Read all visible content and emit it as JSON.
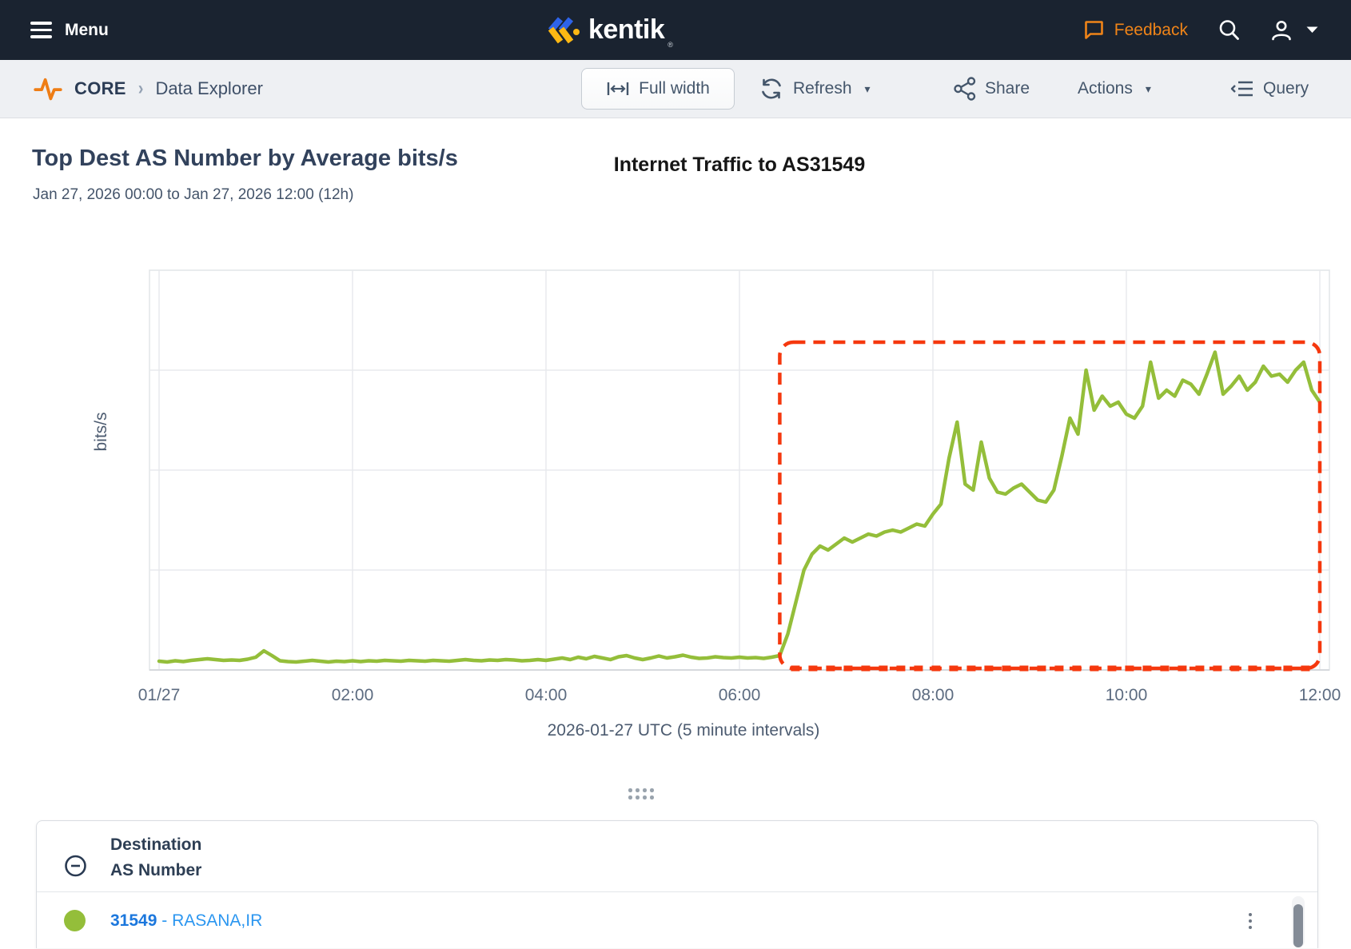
{
  "nav": {
    "menu_label": "Menu",
    "brand": "kentik",
    "registered_mark": "®",
    "feedback_label": "Feedback"
  },
  "toolbar": {
    "breadcrumb_section": "CORE",
    "breadcrumb_separator": "›",
    "breadcrumb_page": "Data Explorer",
    "full_width_label": "Full width",
    "refresh_label": "Refresh",
    "share_label": "Share",
    "actions_label": "Actions",
    "query_label": "Query",
    "caret_glyph": "▾"
  },
  "panel": {
    "title": "Top Dest AS Number by Average bits/s",
    "date_range": "Jan 27, 2026 00:00 to Jan 27, 2026 12:00 (12h)",
    "annotation_title": "Internet Traffic to AS31549"
  },
  "chart_data": {
    "type": "line",
    "title": "Internet Traffic to AS31549",
    "xlabel": "2026-01-27 UTC (5 minute intervals)",
    "ylabel": "bits/s",
    "x_tick_labels": [
      "01/27",
      "02:00",
      "04:00",
      "06:00",
      "08:00",
      "10:00",
      "12:00"
    ],
    "x_start": "2026-01-27 00:00 UTC",
    "x_end": "2026-01-27 12:00 UTC",
    "interval_minutes": 5,
    "y_tick_labels": [],
    "value_units": "bits/s (y axis unlabeled in UI; values are percent of plot height)",
    "ylim": [
      0,
      100
    ],
    "grid": true,
    "legend_position": "none",
    "series": [
      {
        "name": "31549 - RASANA,IR",
        "color": "#94be3a",
        "values": [
          2.2,
          2.0,
          2.3,
          2.1,
          2.4,
          2.6,
          2.8,
          2.6,
          2.4,
          2.5,
          2.4,
          2.7,
          3.2,
          4.8,
          3.6,
          2.3,
          2.1,
          2.0,
          2.2,
          2.4,
          2.2,
          2.0,
          2.2,
          2.1,
          2.3,
          2.1,
          2.3,
          2.2,
          2.4,
          2.3,
          2.2,
          2.4,
          2.3,
          2.2,
          2.4,
          2.3,
          2.2,
          2.4,
          2.6,
          2.4,
          2.3,
          2.5,
          2.4,
          2.6,
          2.5,
          2.3,
          2.4,
          2.6,
          2.4,
          2.7,
          3.0,
          2.6,
          3.2,
          2.8,
          3.4,
          3.0,
          2.6,
          3.3,
          3.6,
          3.0,
          2.6,
          3.0,
          3.5,
          3.0,
          3.3,
          3.7,
          3.2,
          2.9,
          3.0,
          3.3,
          3.1,
          3.0,
          3.2,
          3.0,
          3.1,
          2.9,
          3.2,
          3.6,
          9.0,
          17.0,
          25.0,
          29.0,
          31.0,
          30.0,
          31.5,
          33.0,
          32.0,
          33.0,
          34.0,
          33.5,
          34.5,
          35.0,
          34.5,
          35.5,
          36.5,
          36.0,
          39.0,
          41.5,
          53.0,
          62.0,
          46.5,
          45.0,
          57.0,
          48.0,
          44.5,
          44.0,
          45.5,
          46.5,
          44.5,
          42.5,
          42.0,
          45.0,
          53.5,
          63.0,
          59.0,
          75.0,
          65.0,
          68.5,
          66.0,
          67.0,
          64.0,
          63.0,
          66.0,
          77.0,
          68.0,
          70.0,
          68.5,
          72.5,
          71.5,
          69.0,
          74.0,
          79.5,
          69.0,
          71.0,
          73.5,
          70.0,
          72.0,
          76.0,
          73.5,
          74.0,
          72.0,
          75.0,
          77.0,
          70.0,
          67.0
        ]
      }
    ],
    "annotation_box": {
      "label": "Internet Traffic to AS31549",
      "x_from_minutes": 385,
      "x_to_minutes": 720,
      "y_from_pct": 0.4,
      "y_to_pct": 82,
      "color": "#f5380e",
      "style": "dashed, rounded corners"
    }
  },
  "table": {
    "header_line1": "Destination",
    "header_line2": "AS Number",
    "rows": [
      {
        "as_number": "31549",
        "separator": " - ",
        "as_name": "RASANA,IR",
        "dot_color": "#94be3a"
      }
    ]
  },
  "colors": {
    "navbar_bg": "#1a2330",
    "orange": "#ee7d15",
    "toolbar_bg": "#eef0f3",
    "slate_text": "#44566b",
    "navy_text": "#2b3c55",
    "title_text": "#32425c",
    "series_green": "#94be3a",
    "annotation_red": "#f5380e",
    "link_blue": "#1b77dd",
    "grid_line": "#e8eaed",
    "axis_line": "#d6d9dd",
    "tick_text": "#5c6b80",
    "brand_blue": "#2e63e8",
    "brand_yellow": "#fdb813"
  }
}
